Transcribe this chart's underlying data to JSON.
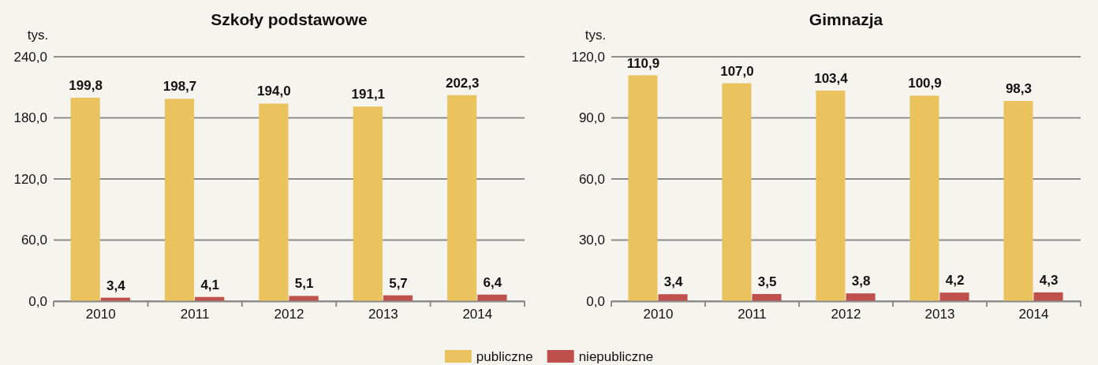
{
  "chart_data": [
    {
      "type": "bar",
      "title": "Szkoły podstawowe",
      "ylabel": "tys.",
      "categories": [
        "2010",
        "2011",
        "2012",
        "2013",
        "2014"
      ],
      "series": [
        {
          "name": "publiczne",
          "color": "#ebc35e",
          "values": [
            199.8,
            198.7,
            194.0,
            191.1,
            202.3
          ],
          "value_labels": [
            "199,8",
            "198,7",
            "194,0",
            "191,1",
            "202,3"
          ]
        },
        {
          "name": "niepubliczne",
          "color": "#c0504d",
          "values": [
            3.4,
            4.1,
            5.1,
            5.7,
            6.4
          ],
          "value_labels": [
            "3,4",
            "4,1",
            "5,1",
            "5,7",
            "6,4"
          ]
        }
      ],
      "ylim": [
        0,
        240
      ],
      "yticks": [
        {
          "value": 0,
          "label": "0,0"
        },
        {
          "value": 60,
          "label": "60,0"
        },
        {
          "value": 120,
          "label": "120,0"
        },
        {
          "value": 180,
          "label": "180,0"
        },
        {
          "value": 240,
          "label": "240,0"
        }
      ],
      "grid": "y",
      "legend": "bottom"
    },
    {
      "type": "bar",
      "title": "Gimnazja",
      "ylabel": "tys.",
      "categories": [
        "2010",
        "2011",
        "2012",
        "2013",
        "2014"
      ],
      "series": [
        {
          "color": "#ebc35e",
          "values": [
            110.9,
            107.0,
            103.4,
            100.9,
            98.3
          ],
          "value_labels": [
            "110,9",
            "107,0",
            "103,4",
            "100,9",
            "98,3"
          ]
        },
        {
          "color": "#c0504d",
          "values": [
            3.4,
            3.5,
            3.8,
            4.2,
            4.3
          ],
          "value_labels": [
            "3,4",
            "3,5",
            "3,8",
            "4,2",
            "4,3"
          ]
        }
      ],
      "ylim": [
        0,
        120
      ],
      "yticks": [
        {
          "value": 0,
          "label": "0,0"
        },
        {
          "value": 30,
          "label": "30,0"
        },
        {
          "value": 60,
          "label": "60,0"
        },
        {
          "value": 90,
          "label": "90,0"
        },
        {
          "value": 120,
          "label": "120,0"
        }
      ],
      "grid": "y"
    }
  ]
}
